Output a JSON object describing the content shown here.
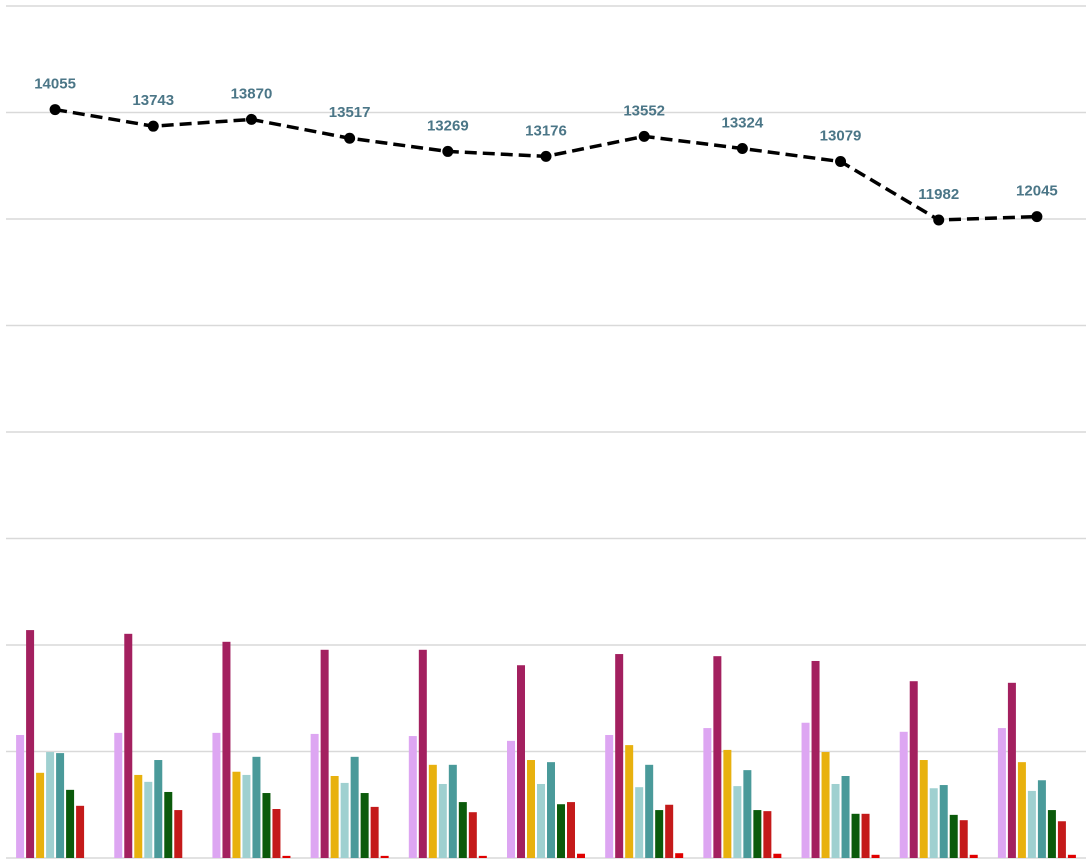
{
  "chart_data": {
    "type": "bar",
    "categories": [
      null,
      null,
      null,
      null,
      null,
      null,
      null,
      null,
      null,
      null,
      null
    ],
    "ylim": [
      0,
      16000
    ],
    "yticks": [
      0,
      2000,
      4000,
      6000,
      8000,
      10000,
      12000,
      14000,
      16000
    ],
    "grid": true,
    "series": [
      {
        "type": "bar",
        "color": "#dda6f2",
        "values": [
          2310,
          2350,
          2350,
          2330,
          2290,
          2200,
          2310,
          2440,
          2540,
          2370,
          2440
        ]
      },
      {
        "type": "bar",
        "color": "#a3205f",
        "values": [
          4280,
          4210,
          4060,
          3910,
          3910,
          3620,
          3830,
          3790,
          3700,
          3320,
          3290
        ]
      },
      {
        "type": "bar",
        "color": "#e8b10e",
        "values": [
          1600,
          1560,
          1620,
          1540,
          1750,
          1840,
          2120,
          2030,
          1990,
          1840,
          1800
        ]
      },
      {
        "type": "bar",
        "color": "#9fd0d0",
        "values": [
          1990,
          1430,
          1560,
          1410,
          1390,
          1390,
          1330,
          1350,
          1390,
          1310,
          1260
        ]
      },
      {
        "type": "bar",
        "color": "#4a9a9a",
        "values": [
          1970,
          1840,
          1900,
          1900,
          1750,
          1800,
          1750,
          1650,
          1540,
          1370,
          1460
        ]
      },
      {
        "type": "bar",
        "color": "#0b5a0b",
        "values": [
          1280,
          1240,
          1220,
          1220,
          1050,
          1010,
          900,
          900,
          830,
          810,
          900
        ]
      },
      {
        "type": "bar",
        "color": "#c41a1a",
        "values": [
          980,
          900,
          920,
          960,
          860,
          1050,
          1000,
          880,
          830,
          710,
          690
        ]
      },
      {
        "type": "bar",
        "color": "#e00000",
        "values": [
          0,
          0,
          40,
          40,
          40,
          80,
          90,
          80,
          60,
          60,
          60
        ]
      },
      {
        "type": "line",
        "color": "#000000",
        "label_color": "#4b7687",
        "values": [
          14055,
          13743,
          13870,
          13517,
          13269,
          13176,
          13552,
          13324,
          13079,
          11982,
          12045
        ]
      }
    ]
  }
}
